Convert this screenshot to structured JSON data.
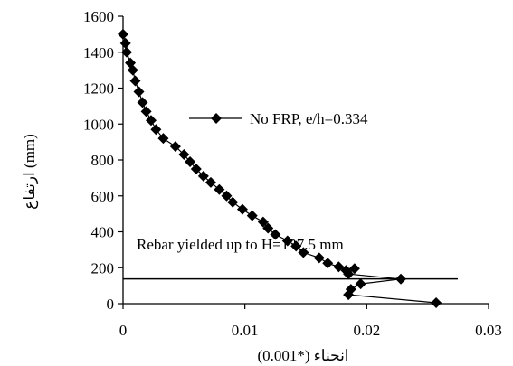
{
  "chart_data": {
    "type": "line",
    "title": "",
    "xlabel": "انحناء (*0.001)",
    "ylabel": "ارتفاع (mm)",
    "xlim": [
      0,
      0.03
    ],
    "ylim": [
      0,
      1600
    ],
    "x_ticks": [
      "0",
      "0.01",
      "0.02",
      "0.03"
    ],
    "y_ticks": [
      "0",
      "200",
      "400",
      "600",
      "800",
      "1000",
      "1200",
      "1400",
      "1600"
    ],
    "grid": false,
    "legend_position": "upper-right",
    "series": [
      {
        "name": "No FRP, e/h=0.334",
        "marker": "diamond",
        "color": "#000000",
        "points": [
          {
            "x": 0.0,
            "y": 1500
          },
          {
            "x": 0.0002,
            "y": 1450
          },
          {
            "x": 0.0003,
            "y": 1400
          },
          {
            "x": 0.0006,
            "y": 1340
          },
          {
            "x": 0.0008,
            "y": 1300
          },
          {
            "x": 0.001,
            "y": 1240
          },
          {
            "x": 0.0013,
            "y": 1180
          },
          {
            "x": 0.0016,
            "y": 1120
          },
          {
            "x": 0.0019,
            "y": 1070
          },
          {
            "x": 0.0023,
            "y": 1020
          },
          {
            "x": 0.0027,
            "y": 970
          },
          {
            "x": 0.0033,
            "y": 920
          },
          {
            "x": 0.0043,
            "y": 875
          },
          {
            "x": 0.005,
            "y": 830
          },
          {
            "x": 0.0055,
            "y": 790
          },
          {
            "x": 0.006,
            "y": 750
          },
          {
            "x": 0.0066,
            "y": 710
          },
          {
            "x": 0.0072,
            "y": 675
          },
          {
            "x": 0.0079,
            "y": 635
          },
          {
            "x": 0.0085,
            "y": 600
          },
          {
            "x": 0.009,
            "y": 565
          },
          {
            "x": 0.0098,
            "y": 525
          },
          {
            "x": 0.0106,
            "y": 490
          },
          {
            "x": 0.0115,
            "y": 455
          },
          {
            "x": 0.0119,
            "y": 420
          },
          {
            "x": 0.0125,
            "y": 385
          },
          {
            "x": 0.0135,
            "y": 350
          },
          {
            "x": 0.0142,
            "y": 320
          },
          {
            "x": 0.0148,
            "y": 285
          },
          {
            "x": 0.0161,
            "y": 255
          },
          {
            "x": 0.0168,
            "y": 225
          },
          {
            "x": 0.0177,
            "y": 205
          },
          {
            "x": 0.0183,
            "y": 185
          },
          {
            "x": 0.019,
            "y": 195
          },
          {
            "x": 0.0185,
            "y": 165
          },
          {
            "x": 0.0228,
            "y": 137
          },
          {
            "x": 0.0195,
            "y": 110
          },
          {
            "x": 0.0187,
            "y": 80
          },
          {
            "x": 0.0185,
            "y": 50
          },
          {
            "x": 0.0257,
            "y": 5
          }
        ]
      }
    ],
    "annotations": [
      {
        "text": "Rebar yielded up to H=137.5 mm",
        "line_y": 137.5
      }
    ]
  }
}
